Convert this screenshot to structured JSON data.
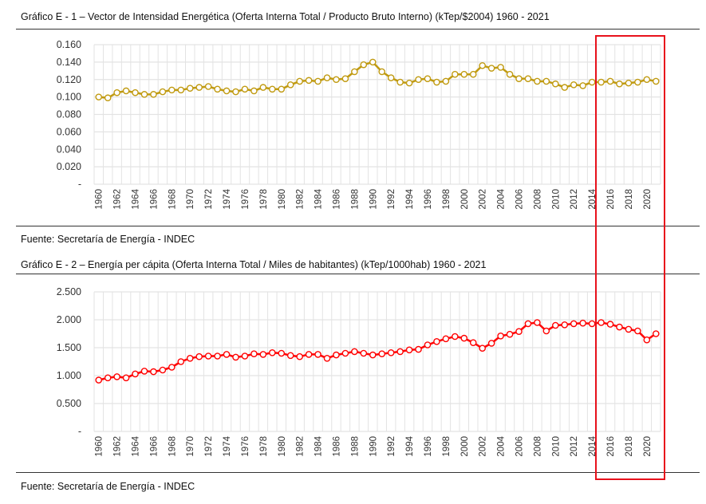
{
  "chart_data": [
    {
      "type": "line",
      "title": "Gráfico E - 1 – Vector de Intensidad Energética (Oferta Interna Total / Producto Bruto Interno) (kTep/$2004) 1960 - 2021",
      "source": "Fuente: Secretaría de Energía - INDEC",
      "color": "#c09a10",
      "x": [
        1960,
        1961,
        1962,
        1963,
        1964,
        1965,
        1966,
        1967,
        1968,
        1969,
        1970,
        1971,
        1972,
        1973,
        1974,
        1975,
        1976,
        1977,
        1978,
        1979,
        1980,
        1981,
        1982,
        1983,
        1984,
        1985,
        1986,
        1987,
        1988,
        1989,
        1990,
        1991,
        1992,
        1993,
        1994,
        1995,
        1996,
        1997,
        1998,
        1999,
        2000,
        2001,
        2002,
        2003,
        2004,
        2005,
        2006,
        2007,
        2008,
        2009,
        2010,
        2011,
        2012,
        2013,
        2014,
        2015,
        2016,
        2017,
        2018,
        2019,
        2020,
        2021
      ],
      "values": [
        0.1,
        0.099,
        0.105,
        0.107,
        0.105,
        0.103,
        0.103,
        0.106,
        0.108,
        0.108,
        0.11,
        0.111,
        0.112,
        0.109,
        0.107,
        0.106,
        0.109,
        0.107,
        0.111,
        0.109,
        0.109,
        0.114,
        0.118,
        0.119,
        0.118,
        0.122,
        0.12,
        0.121,
        0.129,
        0.137,
        0.14,
        0.129,
        0.122,
        0.117,
        0.116,
        0.12,
        0.121,
        0.117,
        0.118,
        0.126,
        0.126,
        0.126,
        0.136,
        0.133,
        0.134,
        0.126,
        0.121,
        0.121,
        0.118,
        0.118,
        0.115,
        0.111,
        0.114,
        0.113,
        0.117,
        0.117,
        0.118,
        0.115,
        0.116,
        0.117,
        0.12,
        0.118
      ],
      "ylim": [
        0,
        0.16
      ],
      "yticks": [
        "-",
        "0.020",
        "0.040",
        "0.060",
        "0.080",
        "0.100",
        "0.120",
        "0.140",
        "0.160"
      ],
      "xticks": [
        "1960",
        "1962",
        "1964",
        "1966",
        "1968",
        "1970",
        "1972",
        "1974",
        "1976",
        "1978",
        "1980",
        "1982",
        "1984",
        "1986",
        "1988",
        "1990",
        "1992",
        "1994",
        "1996",
        "1998",
        "2000",
        "2002",
        "2004",
        "2006",
        "2008",
        "2010",
        "2012",
        "2014",
        "2016",
        "2018",
        "2020"
      ],
      "grid": true
    },
    {
      "type": "line",
      "title": "Gráfico E - 2 – Energía per cápita (Oferta Interna Total / Miles de habitantes) (kTep/1000hab) 1960 - 2021",
      "source": "Fuente: Secretaría de Energía - INDEC",
      "color": "#ff0000",
      "x": [
        1960,
        1961,
        1962,
        1963,
        1964,
        1965,
        1966,
        1967,
        1968,
        1969,
        1970,
        1971,
        1972,
        1973,
        1974,
        1975,
        1976,
        1977,
        1978,
        1979,
        1980,
        1981,
        1982,
        1983,
        1984,
        1985,
        1986,
        1987,
        1988,
        1989,
        1990,
        1991,
        1992,
        1993,
        1994,
        1995,
        1996,
        1997,
        1998,
        1999,
        2000,
        2001,
        2002,
        2003,
        2004,
        2005,
        2006,
        2007,
        2008,
        2009,
        2010,
        2011,
        2012,
        2013,
        2014,
        2015,
        2016,
        2017,
        2018,
        2019,
        2020,
        2021
      ],
      "values": [
        0.92,
        0.96,
        0.98,
        0.96,
        1.03,
        1.08,
        1.07,
        1.1,
        1.15,
        1.25,
        1.31,
        1.34,
        1.35,
        1.35,
        1.38,
        1.33,
        1.35,
        1.39,
        1.38,
        1.41,
        1.4,
        1.36,
        1.34,
        1.38,
        1.38,
        1.31,
        1.37,
        1.4,
        1.43,
        1.4,
        1.37,
        1.39,
        1.41,
        1.43,
        1.46,
        1.47,
        1.55,
        1.61,
        1.66,
        1.7,
        1.67,
        1.59,
        1.49,
        1.58,
        1.71,
        1.74,
        1.79,
        1.93,
        1.95,
        1.8,
        1.9,
        1.91,
        1.93,
        1.94,
        1.93,
        1.95,
        1.92,
        1.87,
        1.83,
        1.8,
        1.64,
        1.75
      ],
      "ylim": [
        0,
        2.5
      ],
      "yticks": [
        "-",
        "0.500",
        "1.000",
        "1.500",
        "2.000",
        "2.500"
      ],
      "xticks": [
        "1960",
        "1962",
        "1964",
        "1966",
        "1968",
        "1970",
        "1972",
        "1974",
        "1976",
        "1978",
        "1980",
        "1982",
        "1984",
        "1986",
        "1988",
        "1990",
        "1992",
        "1994",
        "1996",
        "1998",
        "2000",
        "2002",
        "2004",
        "2006",
        "2008",
        "2010",
        "2012",
        "2014",
        "2016",
        "2018",
        "2020"
      ],
      "grid": true
    }
  ],
  "highlight": {
    "color": "#e8121c",
    "years": [
      2015,
      2021
    ]
  }
}
